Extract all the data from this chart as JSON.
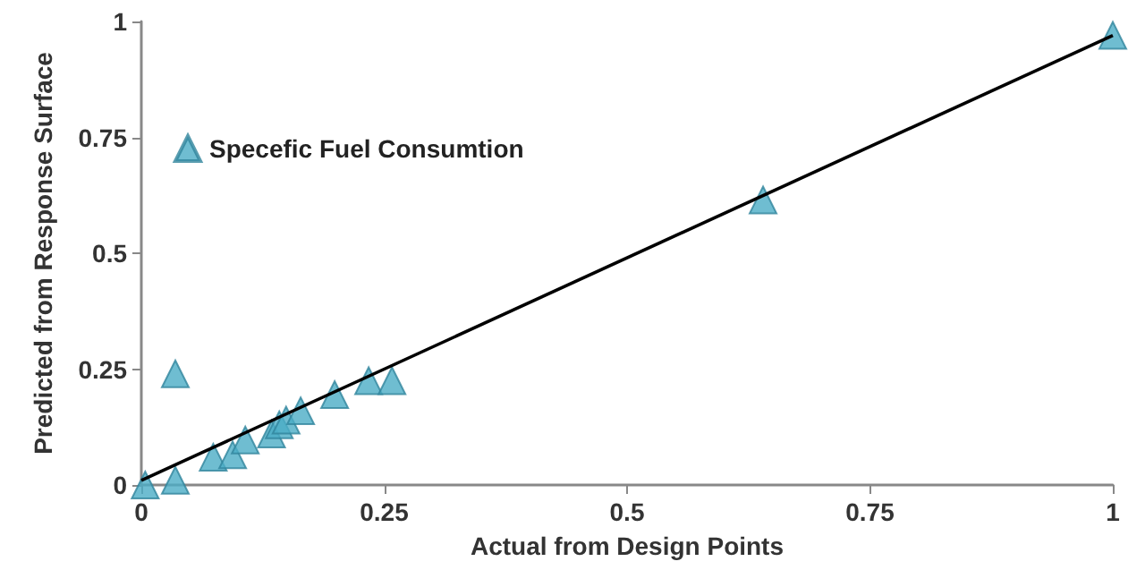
{
  "chart_data": {
    "type": "scatter",
    "xlabel": "Actual from Design Points",
    "ylabel": "Predicted from Response Surface",
    "xlim": [
      0,
      1
    ],
    "ylim": [
      0,
      1
    ],
    "xticks": [
      0,
      0.25,
      0.5,
      0.75,
      1
    ],
    "yticks": [
      0,
      0.25,
      0.5,
      0.75,
      1
    ],
    "grid": false,
    "legend": "top left",
    "marker": "triangle",
    "series": [
      {
        "name": "Specefic Fuel Consumtion",
        "color": "#4bacc6",
        "x": [
          0.004,
          0.035,
          0.035,
          0.074,
          0.094,
          0.107,
          0.134,
          0.142,
          0.149,
          0.164,
          0.199,
          0.234,
          0.258,
          0.64,
          1.0
        ],
        "values": [
          0.0,
          0.01,
          0.24,
          0.06,
          0.065,
          0.097,
          0.11,
          0.13,
          0.14,
          0.16,
          0.195,
          0.225,
          0.225,
          0.615,
          0.97
        ]
      },
      {
        "type": "line",
        "color": "#000000",
        "x": [
          0,
          1
        ],
        "values": [
          0.01,
          0.97
        ],
        "marker": "none",
        "line_style": "solid"
      }
    ]
  }
}
